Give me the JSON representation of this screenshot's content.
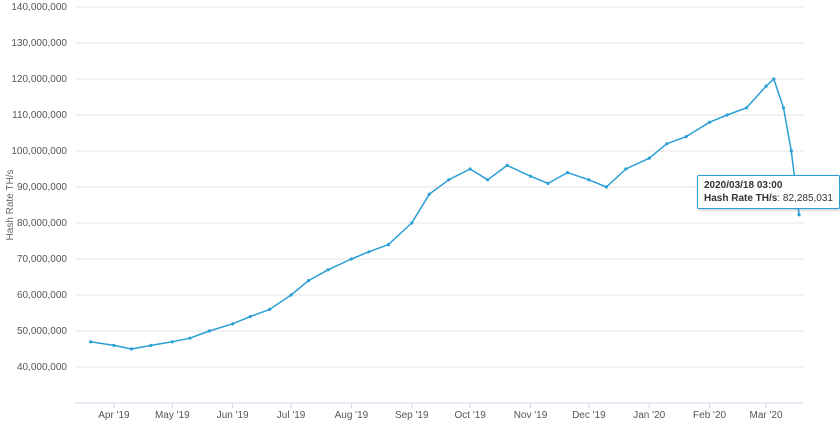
{
  "chart_data": {
    "type": "line",
    "ylabel": "Hash Rate TH/s",
    "ylim": [
      30000000,
      140000000
    ],
    "y_ticks": [
      "40,000,000",
      "50,000,000",
      "60,000,000",
      "70,000,000",
      "80,000,000",
      "90,000,000",
      "100,000,000",
      "110,000,000",
      "120,000,000",
      "130,000,000",
      "140,000,000"
    ],
    "y_tick_values": [
      40000000,
      50000000,
      60000000,
      70000000,
      80000000,
      90000000,
      100000000,
      110000000,
      120000000,
      130000000,
      140000000
    ],
    "x_ticks": [
      "Apr '19",
      "May '19",
      "Jun '19",
      "Jul '19",
      "Aug '19",
      "Sep '19",
      "Oct '19",
      "Nov '19",
      "Dec '19",
      "Jan '20",
      "Feb '20",
      "Mar '20"
    ],
    "x_tick_dates": [
      "2019-04-01",
      "2019-05-01",
      "2019-06-01",
      "2019-07-01",
      "2019-08-01",
      "2019-09-01",
      "2019-10-01",
      "2019-11-01",
      "2019-12-01",
      "2020-01-01",
      "2020-02-01",
      "2020-03-01"
    ],
    "grid": true,
    "color": "#2a9fd6",
    "series": [
      {
        "x": [
          "2019-03-20",
          "2019-04-01",
          "2019-04-10",
          "2019-04-20",
          "2019-05-01",
          "2019-05-10",
          "2019-05-20",
          "2019-06-01",
          "2019-06-10",
          "2019-06-20",
          "2019-07-01",
          "2019-07-10",
          "2019-07-20",
          "2019-08-01",
          "2019-08-10",
          "2019-08-20",
          "2019-09-01",
          "2019-09-10",
          "2019-09-20",
          "2019-10-01",
          "2019-10-10",
          "2019-10-20",
          "2019-11-01",
          "2019-11-10",
          "2019-11-20",
          "2019-12-01",
          "2019-12-10",
          "2019-12-20",
          "2020-01-01",
          "2020-01-10",
          "2020-01-20",
          "2020-02-01",
          "2020-02-10",
          "2020-02-20",
          "2020-03-01",
          "2020-03-05",
          "2020-03-10",
          "2020-03-14",
          "2020-03-18"
        ],
        "values": [
          47000000,
          46000000,
          45000000,
          46000000,
          47000000,
          48000000,
          50000000,
          52000000,
          54000000,
          56000000,
          60000000,
          64000000,
          67000000,
          70000000,
          72000000,
          74000000,
          80000000,
          88000000,
          92000000,
          95000000,
          92000000,
          96000000,
          93000000,
          91000000,
          94000000,
          92000000,
          90000000,
          95000000,
          98000000,
          102000000,
          104000000,
          108000000,
          110000000,
          112000000,
          118000000,
          120000000,
          112000000,
          100000000,
          82285031
        ]
      }
    ],
    "tooltip": {
      "date": "2020/03/18 03:00",
      "label": "Hash Rate TH/s",
      "value": "82,285,031"
    }
  }
}
